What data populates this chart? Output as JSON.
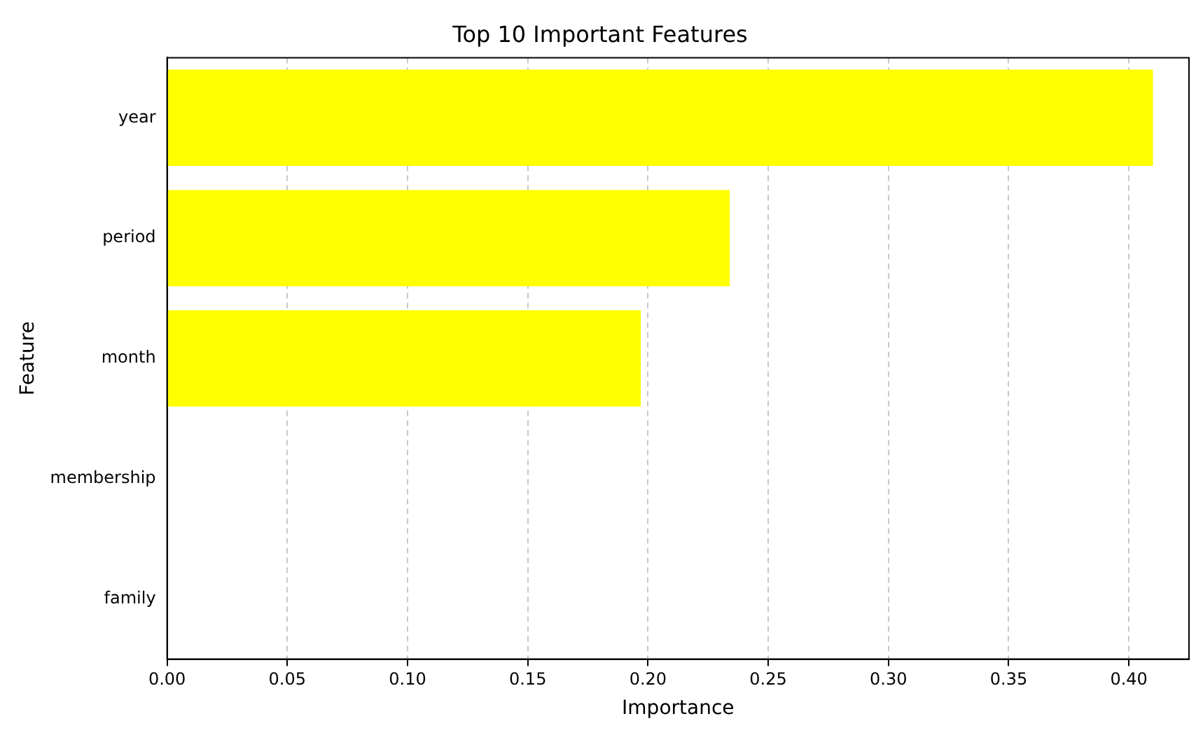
{
  "chart_data": {
    "type": "bar",
    "orientation": "horizontal",
    "title": "Top 10 Important Features",
    "xlabel": "Importance",
    "ylabel": "Feature",
    "categories": [
      "year",
      "period",
      "month",
      "membership",
      "family"
    ],
    "values": [
      0.41,
      0.234,
      0.197,
      0,
      0
    ],
    "color": "#ffff00",
    "xlim": [
      0,
      0.425
    ],
    "xticks": [
      {
        "value": 0,
        "label": "0.00"
      },
      0.05,
      {
        "value": 0.1,
        "label": "0.10"
      },
      0.15,
      {
        "value": 0.2,
        "label": "0.20"
      },
      0.25,
      {
        "value": 0.3,
        "label": "0.30"
      },
      0.35,
      {
        "value": 0.4,
        "label": "0.40"
      }
    ],
    "grid": "x"
  }
}
